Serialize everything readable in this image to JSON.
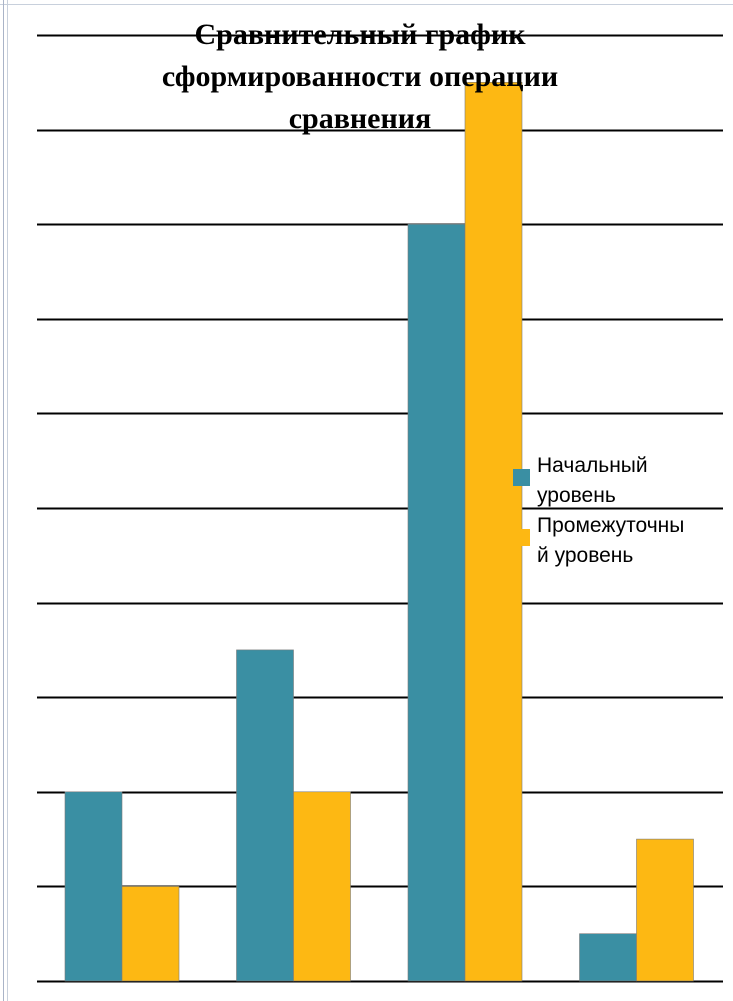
{
  "chart_data": {
    "type": "bar",
    "title": "Сравнительный график сформированности операции сравнения",
    "categories": [
      "",
      "",
      "",
      ""
    ],
    "series": [
      {
        "name": "Начальный уровень",
        "values": [
          2,
          3.5,
          8,
          0.5
        ],
        "color": "#3a8fa3"
      },
      {
        "name": "Промежуточный уровень",
        "values": [
          1,
          2,
          9.5,
          1.5
        ],
        "color": "#fdb813"
      }
    ],
    "ylim": [
      0,
      10
    ],
    "grid": true,
    "legend": "right",
    "xlabel": "",
    "ylabel": ""
  },
  "legend_labels": [
    "Начальный\nуровень",
    "Промежуточны\nй уровень"
  ],
  "title_display": "Сравнительный график\nсформированности операции\nсравнения"
}
